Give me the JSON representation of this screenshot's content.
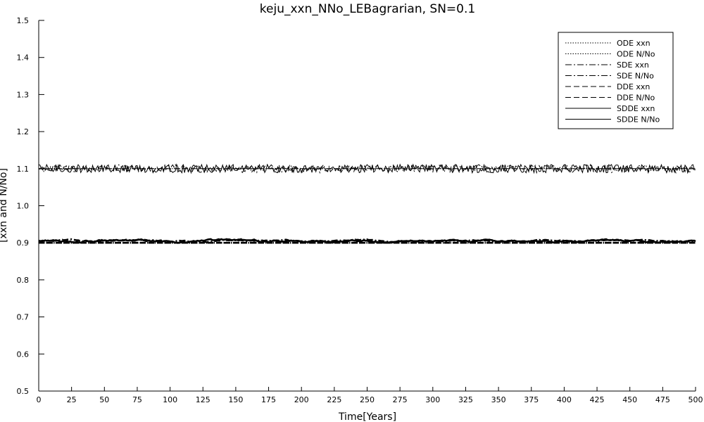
{
  "chart_data": {
    "type": "line",
    "title": "keju_xxn_NNo_LEBagrarian, SN=0.1",
    "xlabel": "Time[Years]",
    "ylabel": "[xxn and N/No]",
    "xlim": [
      0,
      500
    ],
    "ylim": [
      0.5,
      1.5
    ],
    "xticks": [
      "0",
      "25",
      "50",
      "75",
      "100",
      "125",
      "150",
      "175",
      "200",
      "225",
      "250",
      "275",
      "300",
      "325",
      "350",
      "375",
      "400",
      "425",
      "450",
      "475",
      "500"
    ],
    "yticks": [
      "0.5",
      "0.6",
      "0.7",
      "0.8",
      "0.9",
      "1.0",
      "1.1",
      "1.2",
      "1.3",
      "1.4",
      "1.5"
    ],
    "grid": false,
    "legend_position": "top-right",
    "series": [
      {
        "name": "ODE xxn",
        "style": "dotted",
        "level": 1.1,
        "noise": 0.0
      },
      {
        "name": "ODE N/No",
        "style": "dotted",
        "level": 0.9,
        "noise": 0.0
      },
      {
        "name": "SDE xxn",
        "style": "dashdot",
        "level": 1.1,
        "noise": 0.008
      },
      {
        "name": "SDE N/No",
        "style": "dashdot",
        "level": 0.905,
        "noise": 0.003
      },
      {
        "name": "DDE xxn",
        "style": "dashed",
        "level": 1.1,
        "noise": 0.0
      },
      {
        "name": "DDE N/No",
        "style": "dashed",
        "level": 0.9,
        "noise": 0.0
      },
      {
        "name": "SDDE xxn",
        "style": "solid",
        "level": 1.1,
        "noise": 0.008
      },
      {
        "name": "SDDE N/No",
        "style": "solid",
        "level": 0.905,
        "noise": 0.004
      }
    ]
  }
}
